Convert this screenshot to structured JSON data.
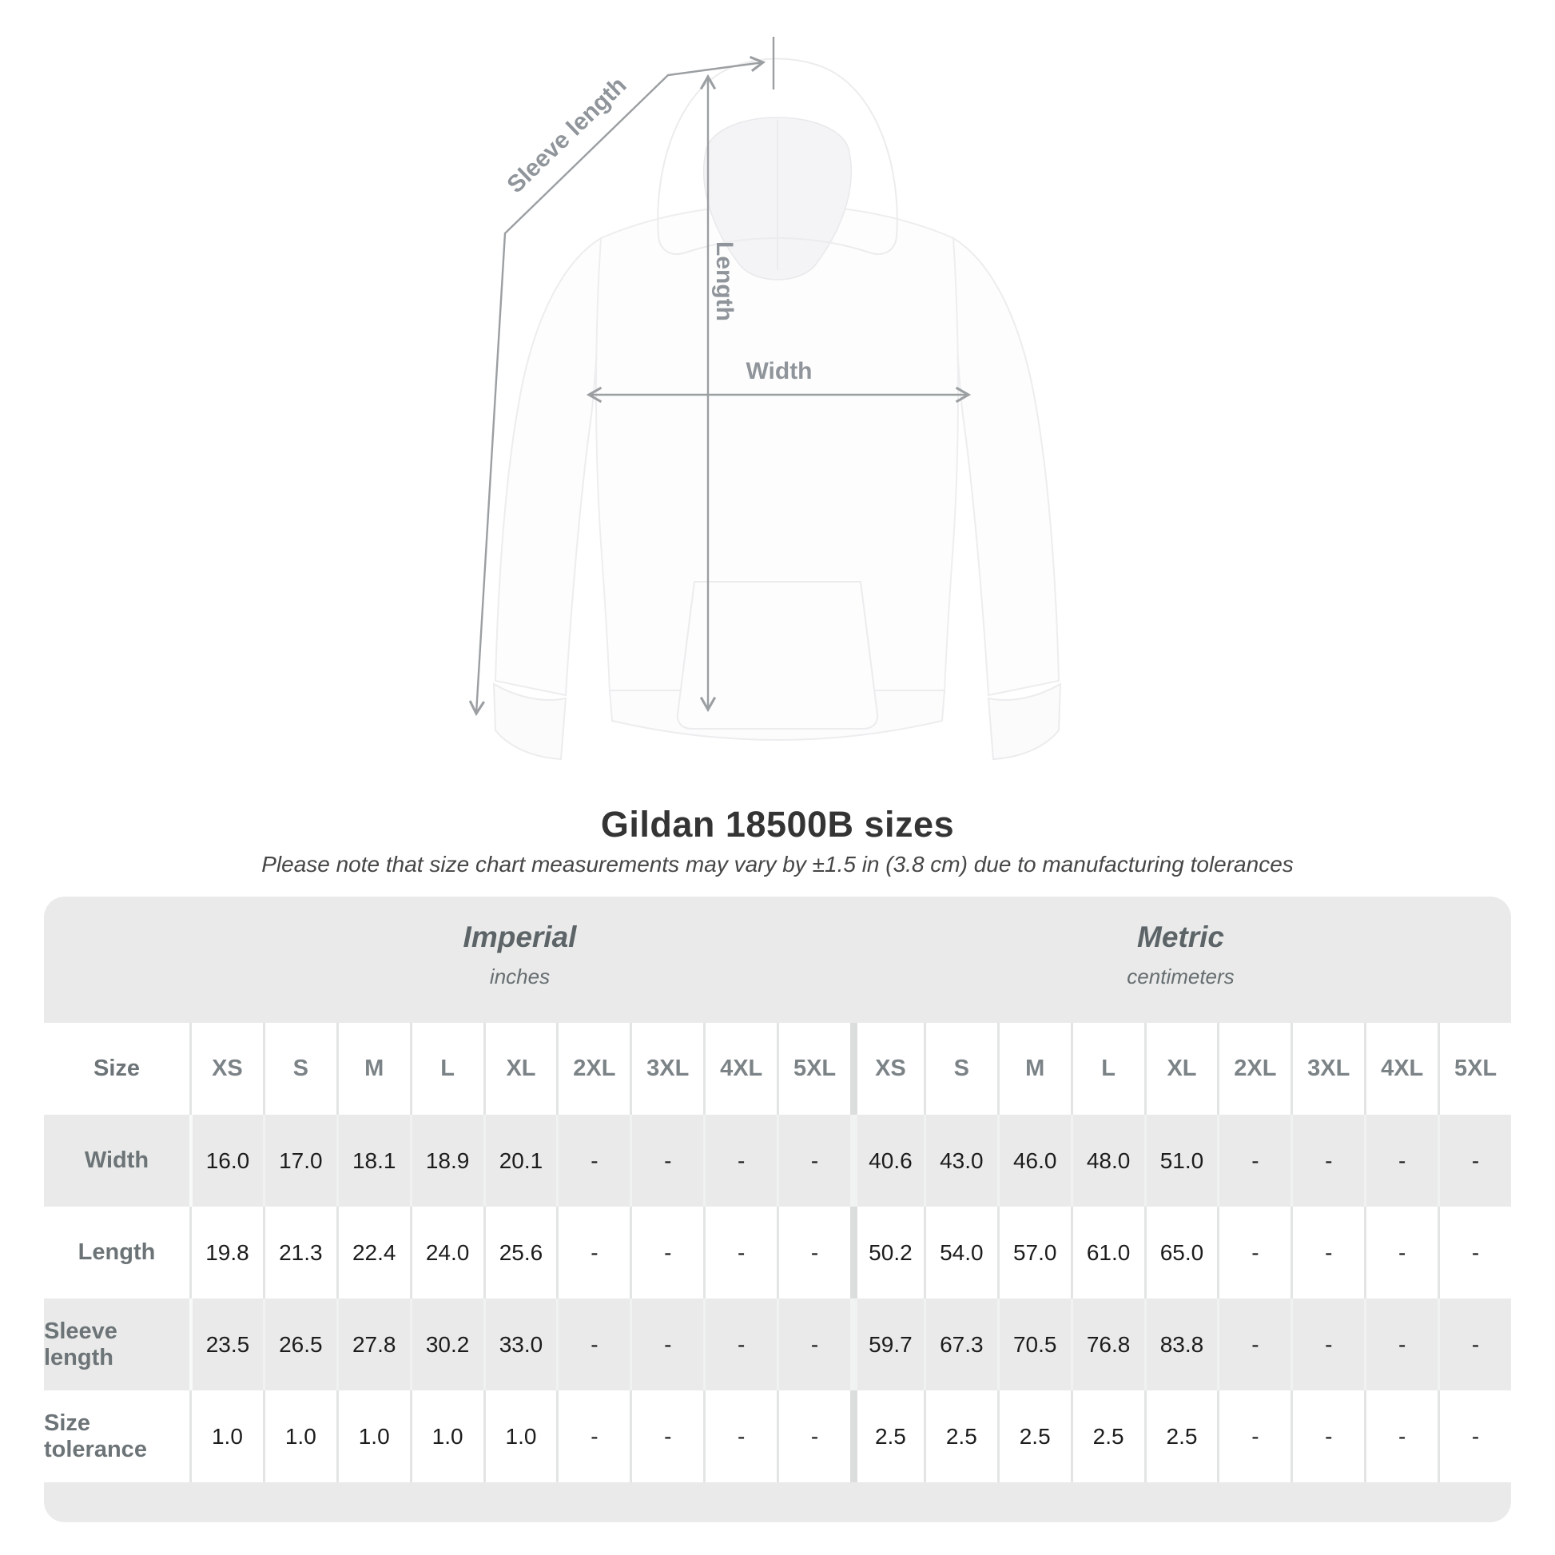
{
  "page": {
    "title": "Gildan 18500B sizes",
    "subtitle": "Please note that size chart measurements may vary by ±1.5 in (3.8 cm) due to manufacturing tolerances"
  },
  "diagram": {
    "arrow_labels": {
      "sleeve_length": "Sleeve length",
      "length": "Length",
      "width": "Width"
    },
    "arrow_color": "#9b9fa2",
    "label_color": "#8f959a"
  },
  "chart_data": {
    "type": "table",
    "title": "Gildan 18500B sizes",
    "note": "Please note that size chart measurements may vary by ±1.5 in (3.8 cm) due to manufacturing tolerances",
    "corner_label": "Size",
    "column_groups": [
      {
        "name": "Imperial",
        "unit": "inches"
      },
      {
        "name": "Metric",
        "unit": "centimeters"
      }
    ],
    "sizes": [
      "XS",
      "S",
      "M",
      "L",
      "XL",
      "2XL",
      "3XL",
      "4XL",
      "5XL"
    ],
    "rows": [
      {
        "label": "Width",
        "imperial": [
          "16.0",
          "17.0",
          "18.1",
          "18.9",
          "20.1",
          "-",
          "-",
          "-",
          "-"
        ],
        "metric": [
          "40.6",
          "43.0",
          "46.0",
          "48.0",
          "51.0",
          "-",
          "-",
          "-",
          "-"
        ]
      },
      {
        "label": "Length",
        "imperial": [
          "19.8",
          "21.3",
          "22.4",
          "24.0",
          "25.6",
          "-",
          "-",
          "-",
          "-"
        ],
        "metric": [
          "50.2",
          "54.0",
          "57.0",
          "61.0",
          "65.0",
          "-",
          "-",
          "-",
          "-"
        ]
      },
      {
        "label": "Sleeve length",
        "imperial": [
          "23.5",
          "26.5",
          "27.8",
          "30.2",
          "33.0",
          "-",
          "-",
          "-",
          "-"
        ],
        "metric": [
          "59.7",
          "67.3",
          "70.5",
          "76.8",
          "83.8",
          "-",
          "-",
          "-",
          "-"
        ]
      },
      {
        "label": "Size tolerance",
        "imperial": [
          "1.0",
          "1.0",
          "1.0",
          "1.0",
          "1.0",
          "-",
          "-",
          "-",
          "-"
        ],
        "metric": [
          "2.5",
          "2.5",
          "2.5",
          "2.5",
          "2.5",
          "-",
          "-",
          "-",
          "-"
        ]
      }
    ]
  },
  "colors": {
    "table_bg": "#e9eae9",
    "row_white": "#ffffff",
    "header_text": "#7c8387",
    "label_text": "#6d7477",
    "value_text": "#1c1c1c",
    "title_text": "#343434"
  }
}
